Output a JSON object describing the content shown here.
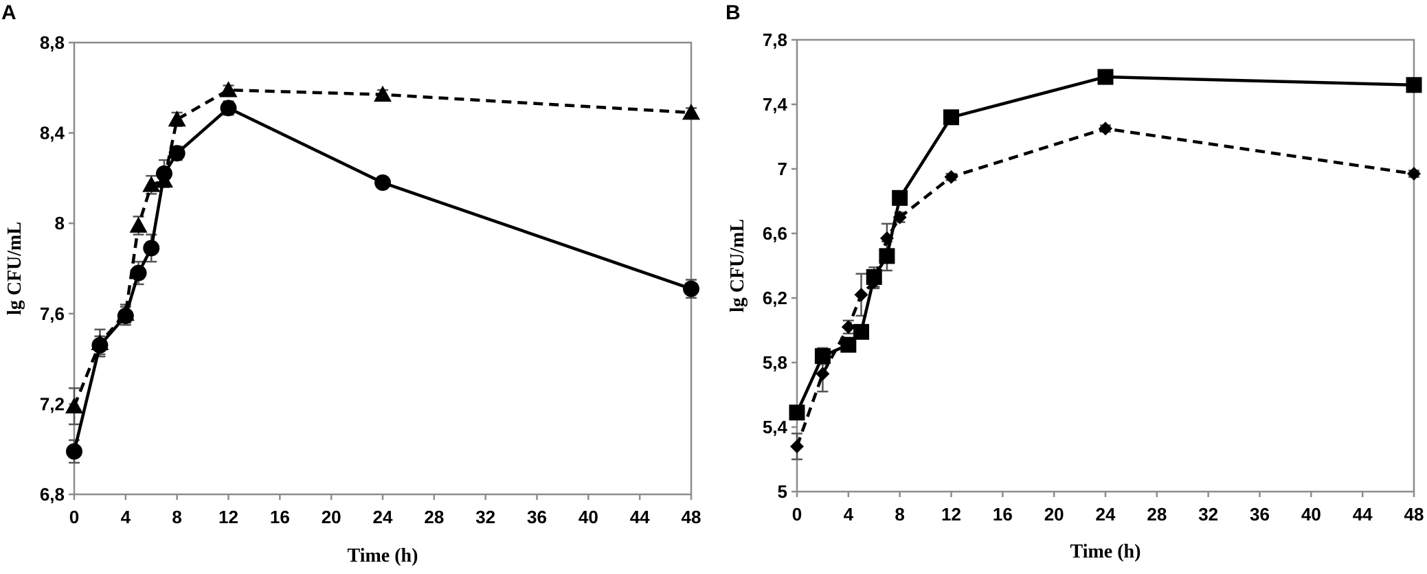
{
  "chart_data": [
    {
      "panel": "A",
      "type": "line",
      "xlabel": "Time (h)",
      "ylabel": "lg CFU/mL",
      "xlim": [
        0,
        48
      ],
      "ylim": [
        6.8,
        8.8
      ],
      "x_ticks": [
        "0",
        "4",
        "8",
        "12",
        "16",
        "20",
        "24",
        "28",
        "32",
        "36",
        "40",
        "44",
        "48"
      ],
      "y_ticks": [
        "6,8",
        "7,2",
        "7,6",
        "8",
        "8,4",
        "8,8"
      ],
      "x_tick_values": [
        0,
        4,
        8,
        12,
        16,
        20,
        24,
        28,
        32,
        36,
        40,
        44,
        48
      ],
      "y_tick_values": [
        6.8,
        7.2,
        7.6,
        8.0,
        8.4,
        8.8
      ],
      "grid": false,
      "series": [
        {
          "marker": "circle",
          "line_style": "solid",
          "x": [
            0,
            2,
            4,
            5,
            6,
            7,
            8,
            12,
            24,
            48
          ],
          "y": [
            6.99,
            7.46,
            7.59,
            7.78,
            7.89,
            8.22,
            8.31,
            8.51,
            8.18,
            7.71
          ],
          "error": [
            0.05,
            0.04,
            0.04,
            0.05,
            0.06,
            0.06,
            0.03,
            0.03,
            0.02,
            0.04
          ]
        },
        {
          "marker": "triangle",
          "line_style": "dashed",
          "x": [
            0,
            2,
            4,
            5,
            6,
            7,
            8,
            12,
            24,
            48
          ],
          "y": [
            7.19,
            7.47,
            7.6,
            7.99,
            8.17,
            8.19,
            8.46,
            8.59,
            8.57,
            8.49
          ],
          "error": [
            0.08,
            0.06,
            0.04,
            0.04,
            0.04,
            0.03,
            0.03,
            0.02,
            0.02,
            0.02
          ]
        }
      ]
    },
    {
      "panel": "B",
      "type": "line",
      "xlabel": "Time (h)",
      "ylabel": "lg CFU/mL",
      "xlim": [
        0,
        48
      ],
      "ylim": [
        5,
        7.8
      ],
      "x_ticks": [
        "0",
        "4",
        "8",
        "12",
        "16",
        "20",
        "24",
        "28",
        "32",
        "36",
        "40",
        "44",
        "48"
      ],
      "y_ticks": [
        "5",
        "5,4",
        "5,8",
        "6,2",
        "6,6",
        "7",
        "7,4",
        "7,8"
      ],
      "x_tick_values": [
        0,
        4,
        8,
        12,
        16,
        20,
        24,
        28,
        32,
        36,
        40,
        44,
        48
      ],
      "y_tick_values": [
        5.0,
        5.4,
        5.8,
        6.2,
        6.6,
        7.0,
        7.4,
        7.8
      ],
      "grid": false,
      "series": [
        {
          "marker": "square",
          "line_style": "solid",
          "x": [
            0,
            2,
            4,
            5,
            6,
            7,
            8,
            12,
            24,
            48
          ],
          "y": [
            5.49,
            5.84,
            5.91,
            5.99,
            6.33,
            6.46,
            6.82,
            7.32,
            7.57,
            7.52
          ],
          "error": [
            0.03,
            0.05,
            0.04,
            0.04,
            0.06,
            0.09,
            0.04,
            0.03,
            0.02,
            0.03
          ]
        },
        {
          "marker": "diamond",
          "line_style": "dashed",
          "x": [
            0,
            2,
            4,
            5,
            6,
            7,
            8,
            12,
            24,
            48
          ],
          "y": [
            5.28,
            5.73,
            6.02,
            6.22,
            6.3,
            6.57,
            6.7,
            6.95,
            7.25,
            6.97
          ],
          "error": [
            0.08,
            0.11,
            0.04,
            0.13,
            0.04,
            0.09,
            0.03,
            0.02,
            0.02,
            0.02
          ]
        }
      ]
    }
  ]
}
